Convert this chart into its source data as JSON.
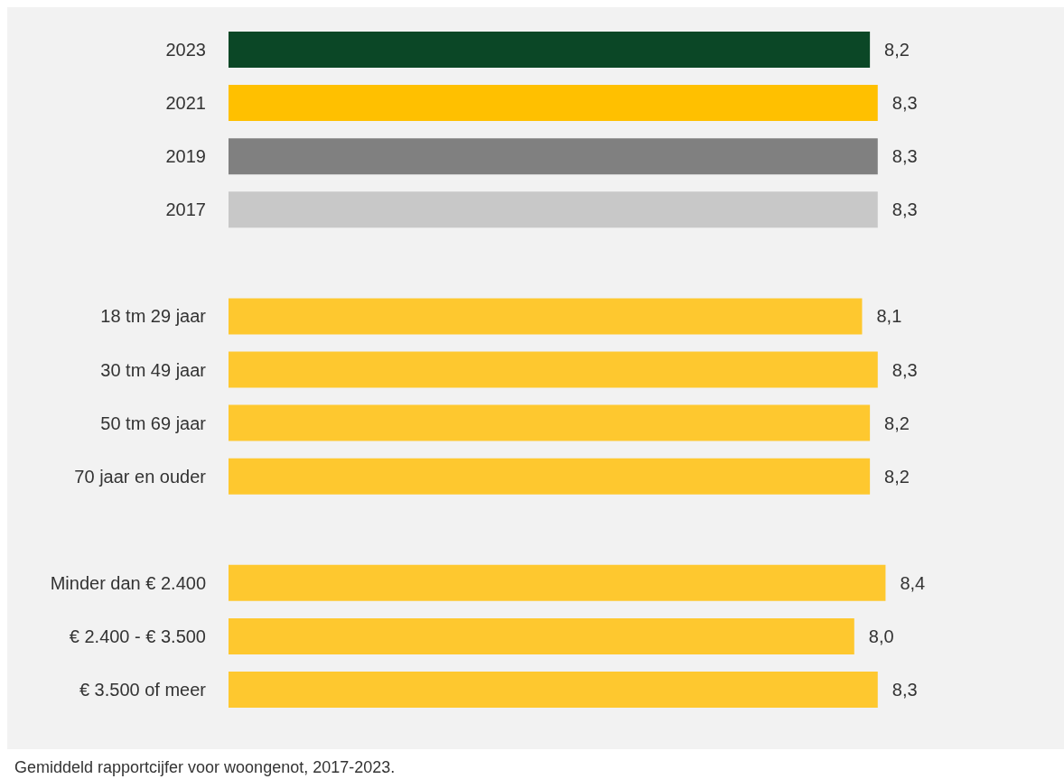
{
  "chart_data": {
    "type": "bar",
    "orientation": "horizontal",
    "categories": [
      "2023",
      "2021",
      "2019",
      "2017",
      null,
      "18 tm 29 jaar",
      "30 tm 49 jaar",
      "50 tm 69 jaar",
      "70 jaar en ouder",
      null,
      "Minder dan € 2.400",
      "€ 2.400 - € 3.500",
      "€ 3.500 of meer"
    ],
    "values": [
      8.2,
      8.3,
      8.3,
      8.3,
      null,
      8.1,
      8.3,
      8.2,
      8.2,
      null,
      8.4,
      8.0,
      8.3
    ],
    "value_labels": [
      "8,2",
      "8,3",
      "8,3",
      "8,3",
      null,
      "8,1",
      "8,3",
      "8,2",
      "8,2",
      null,
      "8,4",
      "8,0",
      "8,3"
    ],
    "colors": [
      "#0b4726",
      "#ffc000",
      "#808080",
      "#c8c8c8",
      null,
      "#fec82f",
      "#fec82f",
      "#fec82f",
      "#fec82f",
      null,
      "#fec82f",
      "#fec82f",
      "#fec82f"
    ],
    "annotations": [
      "Gemiddeld rapportcijfer voor woongenot, 2017-2023."
    ]
  }
}
